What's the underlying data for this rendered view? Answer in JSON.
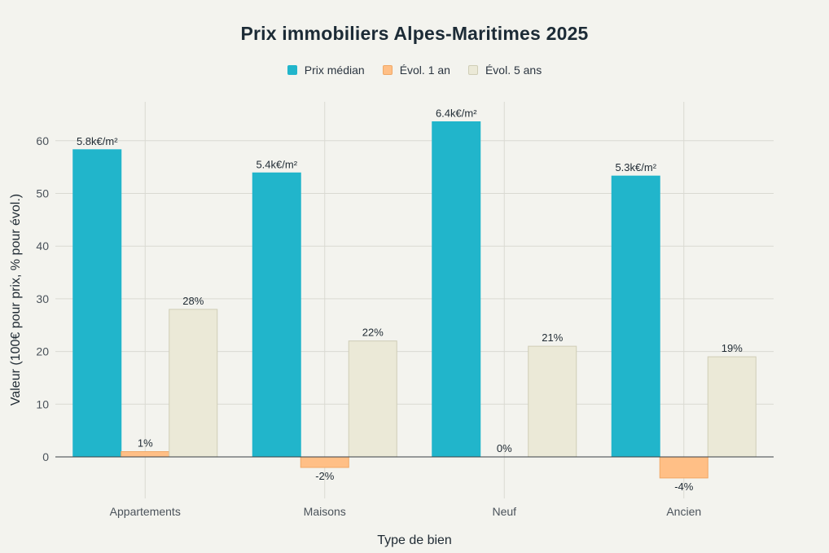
{
  "chart_data": {
    "type": "bar",
    "title": "Prix immobiliers Alpes-Maritimes 2025",
    "xlabel": "Type de bien",
    "ylabel": "Valeur (100€ pour prix, % pour évol.)",
    "categories": [
      "Appartements",
      "Maisons",
      "Neuf",
      "Ancien"
    ],
    "series": [
      {
        "name": "Prix médian",
        "values": [
          58.3,
          53.9,
          63.6,
          53.3
        ],
        "labels": [
          "5.8k€/m²",
          "5.4k€/m²",
          "6.4k€/m²",
          "5.3k€/m²"
        ],
        "color": "#21b5cb"
      },
      {
        "name": "Évol. 1 an",
        "values": [
          1,
          -2,
          0,
          -4
        ],
        "labels": [
          "1%",
          "-2%",
          "0%",
          "-4%"
        ],
        "color": "#ffbf86"
      },
      {
        "name": "Évol. 5 ans",
        "values": [
          28,
          22,
          21,
          19
        ],
        "labels": [
          "28%",
          "22%",
          "21%",
          "19%"
        ],
        "color": "#ebe9d7"
      }
    ],
    "ylim": [
      -6,
      68
    ],
    "yticks": [
      0,
      10,
      20,
      30,
      40,
      50,
      60
    ],
    "grid": true,
    "legend": "top-center"
  }
}
